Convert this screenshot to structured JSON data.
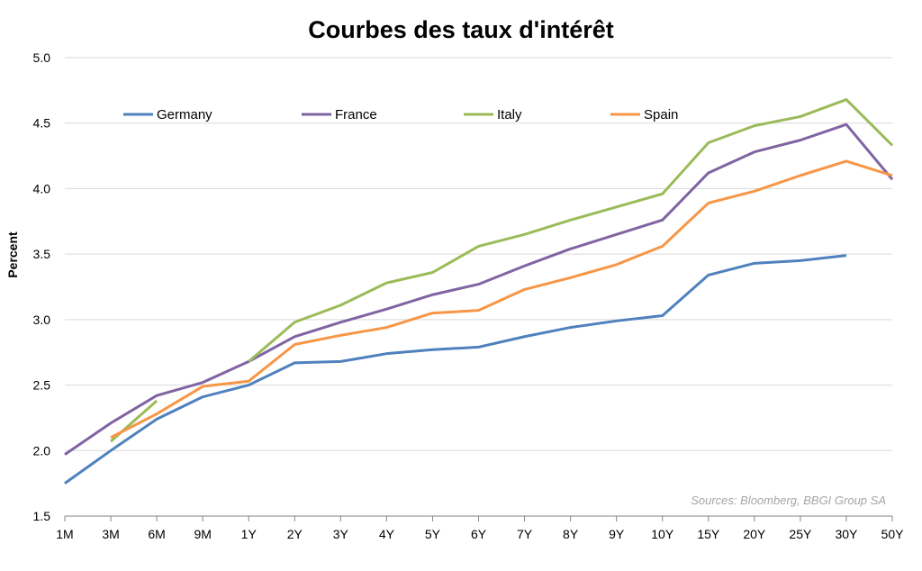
{
  "chart_data": {
    "type": "line",
    "title": "Courbes des taux d'intérêt",
    "xlabel": "",
    "ylabel": "Percent",
    "ylim": [
      1.5,
      5.0
    ],
    "yticks": [
      "1.5",
      "2.0",
      "2.5",
      "3.0",
      "3.5",
      "4.0",
      "4.5",
      "5.0"
    ],
    "grid": true,
    "legend_placement": "top",
    "source": "Sources: Bloomberg, BBGI Group SA",
    "categories": [
      "1M",
      "3M",
      "6M",
      "9M",
      "1Y",
      "2Y",
      "3Y",
      "4Y",
      "5Y",
      "6Y",
      "7Y",
      "8Y",
      "9Y",
      "10Y",
      "15Y",
      "20Y",
      "25Y",
      "30Y",
      "50Y"
    ],
    "series": [
      {
        "name": "Germany",
        "color": "#4f81bd",
        "values": [
          1.75,
          2.0,
          2.24,
          2.41,
          2.5,
          2.67,
          2.68,
          2.74,
          2.77,
          2.79,
          2.87,
          2.94,
          2.99,
          3.03,
          3.34,
          3.43,
          3.45,
          3.49,
          null
        ]
      },
      {
        "name": "France",
        "color": "#8064a2",
        "values": [
          1.97,
          2.21,
          2.42,
          2.52,
          2.68,
          2.87,
          2.98,
          3.08,
          3.19,
          3.27,
          3.41,
          3.54,
          3.65,
          3.76,
          4.12,
          4.28,
          4.37,
          4.49,
          4.07
        ]
      },
      {
        "name": "Italy",
        "color": "#9bbb59",
        "values": [
          null,
          2.07,
          2.38,
          null,
          2.68,
          2.98,
          3.11,
          3.28,
          3.36,
          3.56,
          3.65,
          3.76,
          3.86,
          3.96,
          4.35,
          4.48,
          4.55,
          4.68,
          4.33
        ]
      },
      {
        "name": "Spain",
        "color": "#f79646",
        "values": [
          null,
          2.1,
          2.28,
          2.49,
          2.53,
          2.81,
          2.88,
          2.94,
          3.05,
          3.07,
          3.23,
          3.32,
          3.42,
          3.56,
          3.89,
          3.98,
          4.1,
          4.21,
          4.1
        ]
      }
    ]
  }
}
